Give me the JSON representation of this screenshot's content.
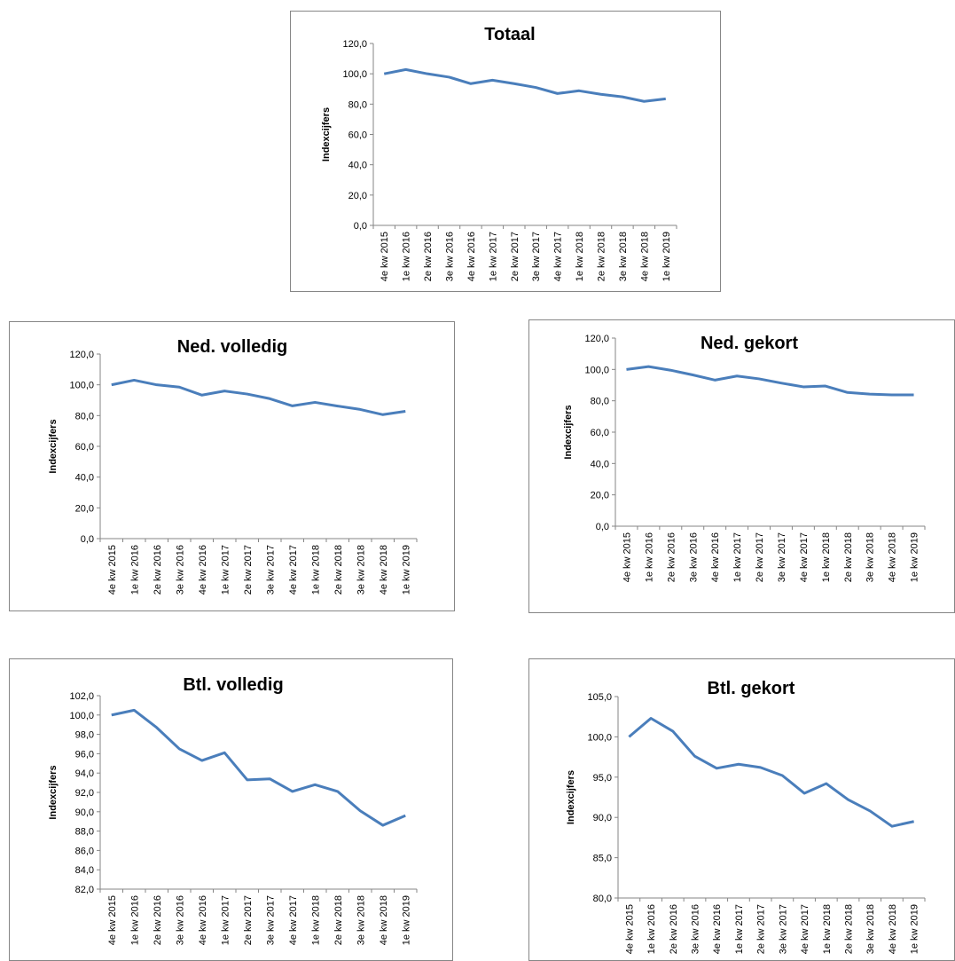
{
  "chart_data": [
    {
      "type": "line",
      "title": "Totaal",
      "y_label": "Indexcijfers",
      "categories": [
        "4e kw 2015",
        "1e kw 2016",
        "2e kw 2016",
        "3e kw 2016",
        "4e kw 2016",
        "1e kw 2017",
        "2e kw 2017",
        "3e kw 2017",
        "4e kw 2017",
        "1e kw 2018",
        "2e kw 2018",
        "3e kw 2018",
        "4e kw 2018",
        "1e kw 2019"
      ],
      "values": [
        100,
        102.8,
        100,
        97.8,
        93.5,
        95.8,
        93.5,
        91,
        87,
        88.8,
        86.5,
        84.8,
        81.8,
        83.5
      ],
      "color": "#4a7ebb",
      "ylim": [
        0,
        120
      ],
      "yticks": [
        {
          "value": 0,
          "label": "0,0"
        },
        {
          "value": 20,
          "label": "20,0"
        },
        {
          "value": 40,
          "label": "40,0"
        },
        {
          "value": 60,
          "label": "60,0"
        },
        {
          "value": 80,
          "label": "80,0"
        },
        {
          "value": 100,
          "label": "100,0"
        },
        {
          "value": 120,
          "label": "120,0"
        }
      ]
    },
    {
      "type": "line",
      "title": "Ned. volledig",
      "y_label": "Indexcijfers",
      "categories": [
        "4e kw 2015",
        "1e kw 2016",
        "2e kw 2016",
        "3e kw 2016",
        "4e kw 2016",
        "1e kw 2017",
        "2e kw 2017",
        "3e kw 2017",
        "4e kw 2017",
        "1e kw 2018",
        "2e kw 2018",
        "3e kw 2018",
        "4e kw 2018",
        "1e kw 2019"
      ],
      "values": [
        100,
        103,
        100,
        98.5,
        93.3,
        96,
        94,
        91,
        86.3,
        88.6,
        86.2,
        84,
        80.6,
        82.8
      ],
      "color": "#4a7ebb",
      "ylim": [
        0,
        120
      ],
      "yticks": [
        {
          "value": 0,
          "label": "0,0"
        },
        {
          "value": 20,
          "label": "20,0"
        },
        {
          "value": 40,
          "label": "40,0"
        },
        {
          "value": 60,
          "label": "60,0"
        },
        {
          "value": 80,
          "label": "80,0"
        },
        {
          "value": 100,
          "label": "100,0"
        },
        {
          "value": 120,
          "label": "120,0"
        }
      ]
    },
    {
      "type": "line",
      "title": "Ned. gekort",
      "y_label": "Indexcijfers",
      "categories": [
        "4e kw 2015",
        "1e kw 2016",
        "2e kw 2016",
        "3e kw 2016",
        "4e kw 2016",
        "1e kw 2017",
        "2e kw 2017",
        "3e kw 2017",
        "4e kw 2017",
        "1e kw 2018",
        "2e kw 2018",
        "3e kw 2018",
        "4e kw 2018",
        "1e kw 2019"
      ],
      "values": [
        100,
        101.8,
        99.5,
        96.5,
        93.2,
        95.8,
        94,
        91.3,
        88.9,
        89.4,
        85.3,
        84.3,
        83.8,
        83.8
      ],
      "color": "#4a7ebb",
      "ylim": [
        0,
        120
      ],
      "yticks": [
        {
          "value": 0,
          "label": "0,0"
        },
        {
          "value": 20,
          "label": "20,0"
        },
        {
          "value": 40,
          "label": "40,0"
        },
        {
          "value": 60,
          "label": "60,0"
        },
        {
          "value": 80,
          "label": "80,0"
        },
        {
          "value": 100,
          "label": "100,0"
        },
        {
          "value": 120,
          "label": "120,0"
        }
      ]
    },
    {
      "type": "line",
      "title": "Btl. volledig",
      "y_label": "Indexcijfers",
      "categories": [
        "4e kw 2015",
        "1e kw 2016",
        "2e kw 2016",
        "3e kw 2016",
        "4e kw 2016",
        "1e kw 2017",
        "2e kw 2017",
        "3e kw 2017",
        "4e kw 2017",
        "1e kw 2018",
        "2e kw 2018",
        "3e kw 2018",
        "4e kw 2018",
        "1e kw 2019"
      ],
      "values": [
        100,
        100.5,
        98.7,
        96.5,
        95.3,
        96.1,
        93.3,
        93.4,
        92.1,
        92.8,
        92.1,
        90.1,
        88.6,
        89.6
      ],
      "color": "#4a7ebb",
      "ylim": [
        82,
        102
      ],
      "yticks": [
        {
          "value": 82,
          "label": "82,0"
        },
        {
          "value": 84,
          "label": "84,0"
        },
        {
          "value": 86,
          "label": "86,0"
        },
        {
          "value": 88,
          "label": "88,0"
        },
        {
          "value": 90,
          "label": "90,0"
        },
        {
          "value": 92,
          "label": "92,0"
        },
        {
          "value": 94,
          "label": "94,0"
        },
        {
          "value": 96,
          "label": "96,0"
        },
        {
          "value": 98,
          "label": "98,0"
        },
        {
          "value": 100,
          "label": "100,0"
        },
        {
          "value": 102,
          "label": "102,0"
        }
      ]
    },
    {
      "type": "line",
      "title": "Btl. gekort",
      "y_label": "Indexcijfers",
      "categories": [
        "4e kw 2015",
        "1e kw 2016",
        "2e kw 2016",
        "3e kw 2016",
        "4e kw 2016",
        "1e kw 2017",
        "2e kw 2017",
        "3e kw 2017",
        "4e kw 2017",
        "1e kw 2018",
        "2e kw 2018",
        "3e kw 2018",
        "4e kw 2018",
        "1e kw 2019"
      ],
      "values": [
        100,
        102.3,
        100.7,
        97.6,
        96.1,
        96.6,
        96.2,
        95.2,
        93,
        94.2,
        92.2,
        90.8,
        88.9,
        89.5
      ],
      "color": "#4a7ebb",
      "ylim": [
        80,
        105
      ],
      "yticks": [
        {
          "value": 80,
          "label": "80,0"
        },
        {
          "value": 85,
          "label": "85,0"
        },
        {
          "value": 90,
          "label": "90,0"
        },
        {
          "value": 95,
          "label": "95,0"
        },
        {
          "value": 100,
          "label": "100,0"
        },
        {
          "value": 105,
          "label": "105,0"
        }
      ]
    }
  ]
}
